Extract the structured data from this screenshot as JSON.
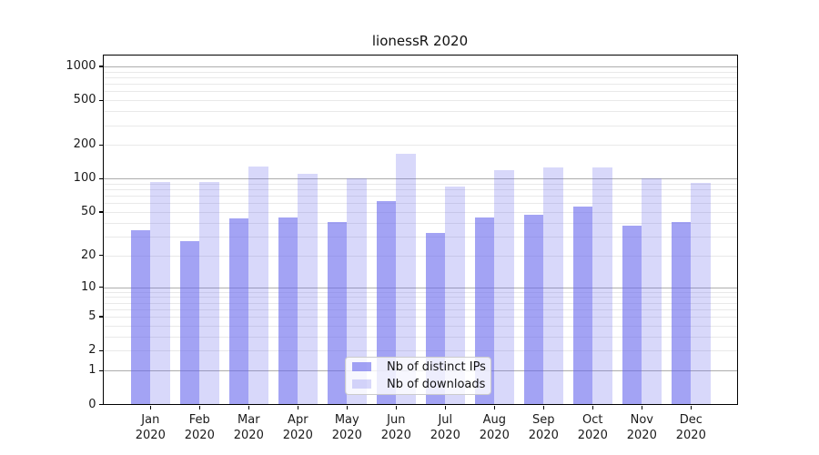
{
  "title": "lionessR 2020",
  "legend": {
    "items": [
      {
        "label": "Nb of distinct IPs",
        "color": "rgba(101,101,237,0.60)"
      },
      {
        "label": "Nb of downloads",
        "color": "rgba(101,101,237,0.25)"
      }
    ]
  },
  "colors": {
    "bar_base": "#6565ed",
    "ips_fill": "rgba(101,101,237,0.60)",
    "downloads_fill": "rgba(101,101,237,0.25)",
    "major_grid": "rgba(0,0,0,0.32)",
    "minor_grid": "rgba(0,0,0,0.085)",
    "axis": "#000000",
    "text": "#1a1a1a"
  },
  "chart_data": {
    "type": "bar",
    "title": "lionessR 2020",
    "x_month_labels": [
      "Jan",
      "Feb",
      "Mar",
      "Apr",
      "May",
      "Jun",
      "Jul",
      "Aug",
      "Sep",
      "Oct",
      "Nov",
      "Dec"
    ],
    "x_year_label": "2020",
    "series": [
      {
        "name": "Nb of distinct IPs",
        "values": [
          34,
          27,
          44,
          45,
          41,
          63,
          32,
          45,
          47,
          56,
          38,
          41
        ]
      },
      {
        "name": "Nb of downloads",
        "values": [
          93,
          93,
          129,
          110,
          100,
          166,
          85,
          119,
          125,
          127,
          100,
          91
        ]
      }
    ],
    "y_scale": "log1p",
    "y_tick_labels": [
      0,
      1,
      2,
      5,
      10,
      20,
      50,
      100,
      200,
      500,
      1000
    ],
    "ylim": [
      0,
      1260
    ],
    "grid": true,
    "major_grid_values": [
      1,
      10,
      100,
      1000
    ],
    "legend_position": "lower center"
  }
}
